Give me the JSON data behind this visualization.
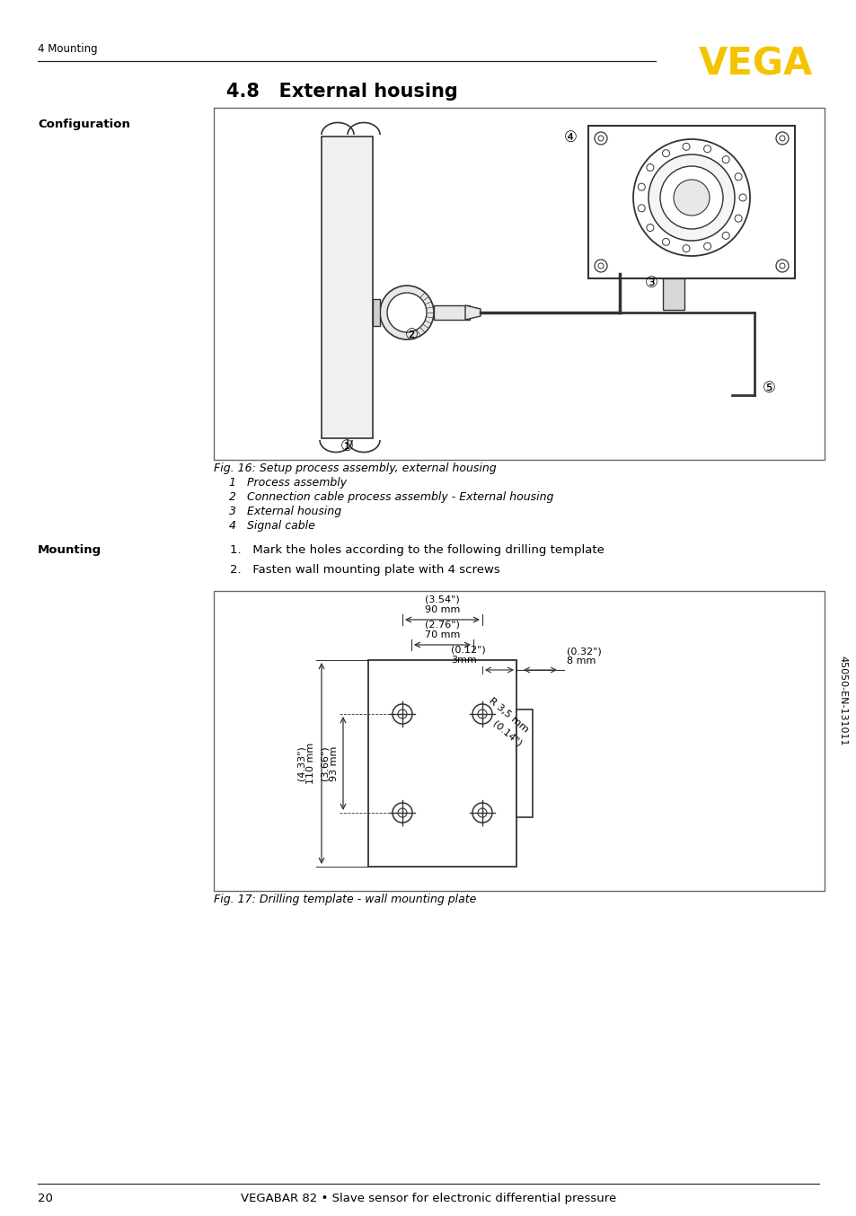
{
  "page_header_left": "4 Mounting",
  "vega_logo": "VEGA",
  "section_title": "4.8   External housing",
  "config_label": "Configuration",
  "fig16_caption": "Fig. 16: Setup process assembly, external housing",
  "fig16_items": [
    "1   Process assembly",
    "2   Connection cable process assembly - External housing",
    "3   External housing",
    "4   Signal cable"
  ],
  "mounting_label": "Mounting",
  "mounting_step1": "1.   Mark the holes according to the following drilling template",
  "mounting_step2": "2.   Fasten wall mounting plate with 4 screws",
  "fig17_caption": "Fig. 17: Drilling template - wall mounting plate",
  "dim_90mm": "90 mm",
  "dim_90in": "(3.54\")",
  "dim_70mm": "70 mm",
  "dim_70in": "(2.76\")",
  "dim_3mm": "3mm",
  "dim_3in": "(0.12\")",
  "dim_8mm": "8 mm",
  "dim_8in": "(0.32\")",
  "dim_r35mm": "R 3,5 mm",
  "dim_r35in": "(0.14\")",
  "dim_110mm": "110 mm",
  "dim_110in": "(4.33\")",
  "dim_93mm": "93 mm",
  "dim_93in": "(3.66\")",
  "footer_page": "20",
  "footer_text": "VEGABAR 82 • Slave sensor for electronic differential pressure",
  "sidebar_text": "45050-EN-131011",
  "bg_color": "#ffffff",
  "text_color": "#000000",
  "vega_color": "#f5c400",
  "line_color": "#000000",
  "box_line_color": "#555555",
  "draw_color": "#333333"
}
